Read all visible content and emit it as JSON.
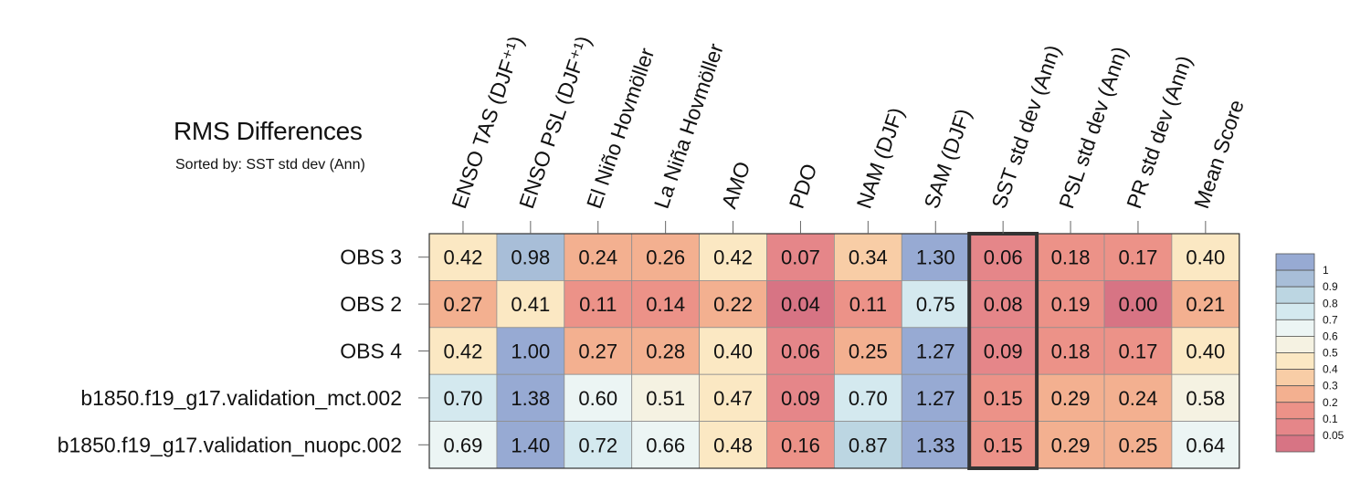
{
  "chart_data": {
    "type": "heatmap",
    "title": "RMS Differences",
    "subtitle": "Sorted by: SST std dev (Ann)",
    "columns": [
      "ENSO TAS (DJF⁺¹)",
      "ENSO PSL (DJF⁺¹)",
      "El Niño Hovmöller",
      "La Niña Hovmöller",
      "AMO",
      "PDO",
      "NAM (DJF)",
      "SAM (DJF)",
      "SST std dev (Ann)",
      "PSL std dev (Ann)",
      "PR std dev (Ann)",
      "Mean Score"
    ],
    "rows": [
      "OBS 3",
      "OBS 2",
      "OBS 4",
      "b1850.f19_g17.validation_mct.002",
      "b1850.f19_g17.validation_nuopc.002"
    ],
    "values": [
      [
        0.42,
        0.98,
        0.24,
        0.26,
        0.42,
        0.07,
        0.34,
        1.3,
        0.06,
        0.18,
        0.17,
        0.4
      ],
      [
        0.27,
        0.41,
        0.11,
        0.14,
        0.22,
        0.04,
        0.11,
        0.75,
        0.08,
        0.19,
        0.0,
        0.21
      ],
      [
        0.42,
        1.0,
        0.27,
        0.28,
        0.4,
        0.06,
        0.25,
        1.27,
        0.09,
        0.18,
        0.17,
        0.4
      ],
      [
        0.7,
        1.38,
        0.6,
        0.51,
        0.47,
        0.09,
        0.7,
        1.27,
        0.15,
        0.29,
        0.24,
        0.58
      ],
      [
        0.69,
        1.4,
        0.72,
        0.66,
        0.48,
        0.16,
        0.87,
        1.33,
        0.15,
        0.29,
        0.25,
        0.64
      ]
    ],
    "highlighted_column": "SST std dev (Ann)",
    "colorbar": {
      "levels": [
        "1",
        "0.9",
        "0.8",
        "0.7",
        "0.6",
        "0.5",
        "0.4",
        "0.3",
        "0.2",
        "0.1",
        "0.05"
      ],
      "colors": [
        "#97aad3",
        "#a8bed8",
        "#bcd6e2",
        "#d4e9ef",
        "#ecf5f4",
        "#f5f2e2",
        "#fbe8c3",
        "#f8cda6",
        "#f3b090",
        "#ec9288",
        "#e58689",
        "#d77484"
      ]
    }
  }
}
